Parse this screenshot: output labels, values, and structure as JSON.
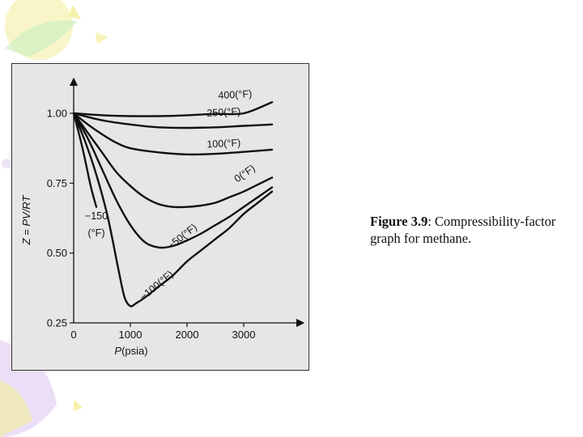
{
  "caption": {
    "figure_label": "Figure 3.9",
    "text": ": Compressibility-factor graph for methane."
  },
  "colors": {
    "panel_background": "#e6e6e6",
    "curve": "#111111",
    "decor_yellow": "#f3ef9a",
    "decor_green": "#c8eec0",
    "decor_purple": "#e3d2f3"
  },
  "chart_data": {
    "type": "line",
    "title": "",
    "xlabel_var": "P",
    "xlabel_unit": "(psia)",
    "ylabel": "Z = PV/RT",
    "xlim": [
      0,
      3600
    ],
    "ylim": [
      0.25,
      1.05
    ],
    "x_ticks": [
      {
        "value": 0,
        "label": "0"
      },
      {
        "value": 1000,
        "label": "1000"
      },
      {
        "value": 2000,
        "label": "2000"
      },
      {
        "value": 3000,
        "label": "3000"
      }
    ],
    "y_ticks": [
      {
        "value": 1.0,
        "label": "1.00"
      },
      {
        "value": 0.75,
        "label": "0.75"
      },
      {
        "value": 0.5,
        "label": "0.50"
      },
      {
        "value": 0.25,
        "label": "0.25"
      }
    ],
    "grid": false,
    "series": [
      {
        "name": "400(°F)",
        "x": [
          0,
          500,
          1000,
          1500,
          2000,
          2500,
          3000,
          3500
        ],
        "y": [
          1.0,
          0.993,
          0.99,
          0.99,
          0.993,
          0.998,
          1.0,
          1.04
        ]
      },
      {
        "name": "250(°F)",
        "x": [
          0,
          500,
          1000,
          1500,
          2000,
          2500,
          3000,
          3500
        ],
        "y": [
          1.0,
          0.975,
          0.96,
          0.95,
          0.948,
          0.95,
          0.955,
          0.96
        ]
      },
      {
        "name": "100(°F)",
        "x": [
          0,
          250,
          500,
          750,
          1000,
          1500,
          2000,
          2500,
          3000,
          3500
        ],
        "y": [
          1.0,
          0.96,
          0.925,
          0.895,
          0.875,
          0.86,
          0.853,
          0.855,
          0.862,
          0.87
        ]
      },
      {
        "name": "0(°F)",
        "x": [
          0,
          250,
          500,
          750,
          1000,
          1250,
          1500,
          1750,
          2000,
          2250,
          2500,
          2750,
          3000,
          3250,
          3500
        ],
        "y": [
          1.0,
          0.93,
          0.86,
          0.79,
          0.74,
          0.7,
          0.675,
          0.665,
          0.665,
          0.67,
          0.68,
          0.7,
          0.72,
          0.745,
          0.77
        ]
      },
      {
        "name": "−50(°F)",
        "x": [
          0,
          250,
          500,
          750,
          1000,
          1250,
          1500,
          1750,
          2000,
          2250,
          2500,
          2750,
          3000,
          3250,
          3500
        ],
        "y": [
          1.0,
          0.91,
          0.8,
          0.69,
          0.6,
          0.54,
          0.52,
          0.525,
          0.545,
          0.57,
          0.6,
          0.63,
          0.665,
          0.7,
          0.735
        ]
      },
      {
        "name": "−100(°F)",
        "x": [
          0,
          200,
          400,
          600,
          800,
          900,
          1000,
          1100,
          1250,
          1500,
          1750,
          2000,
          2250,
          2500,
          2750,
          3000,
          3250,
          3500
        ],
        "y": [
          1.0,
          0.9,
          0.78,
          0.63,
          0.43,
          0.34,
          0.31,
          0.32,
          0.34,
          0.38,
          0.42,
          0.47,
          0.51,
          0.55,
          0.59,
          0.64,
          0.68,
          0.72
        ]
      },
      {
        "name": "−150 (°F)",
        "x": [
          0,
          150,
          300,
          400
        ],
        "y": [
          1.0,
          0.88,
          0.74,
          0.665
        ]
      }
    ],
    "curve_labels": [
      {
        "series": "400(°F)",
        "text": "400(°F)",
        "x": 2850,
        "y": 1.055,
        "angle": -3
      },
      {
        "series": "250(°F)",
        "text": "250(°F)",
        "x": 2650,
        "y": 0.992,
        "angle": -3
      },
      {
        "series": "100(°F)",
        "text": "100(°F)",
        "x": 2650,
        "y": 0.88,
        "angle": -3
      },
      {
        "series": "0(°F)",
        "text": "0(°F)",
        "x": 3050,
        "y": 0.775,
        "angle": -35
      },
      {
        "series": "−50(°F)",
        "text": "−50(°F)",
        "x": 1950,
        "y": 0.55,
        "angle": -38
      },
      {
        "series": "−100(°F)",
        "text": "−100(°F)",
        "x": 1500,
        "y": 0.375,
        "angle": -40
      },
      {
        "series": "−150 (°F)",
        "text": "−150",
        "x": 400,
        "y": 0.62,
        "angle": 0
      },
      {
        "series": "−150 (°F)",
        "text": "(°F)",
        "x": 400,
        "y": 0.56,
        "angle": 0
      }
    ]
  }
}
